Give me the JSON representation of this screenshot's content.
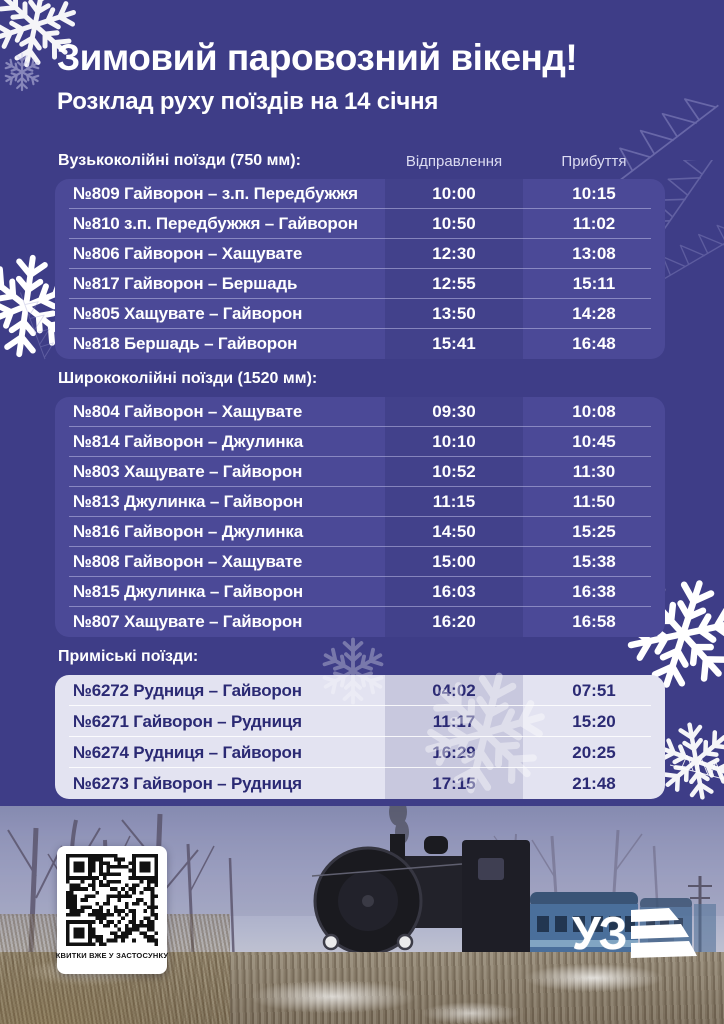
{
  "page": {
    "title": "Зимовий паровозний вікенд!",
    "subtitle": "Розклад руху поїздів на 14 січня"
  },
  "table": {
    "col_departure": "Відправлення",
    "col_arrival": "Прибуття",
    "sections": [
      {
        "label": "Вузькоколійні поїзди (750 мм):",
        "theme": "dark",
        "rows": [
          {
            "train": "№809 Гайворон – з.п. Передбужжя",
            "dep": "10:00",
            "arr": "10:15"
          },
          {
            "train": "№810 з.п. Передбужжя – Гайворон",
            "dep": "10:50",
            "arr": "11:02"
          },
          {
            "train": "№806 Гайворон – Хащувате",
            "dep": "12:30",
            "arr": "13:08"
          },
          {
            "train": "№817 Гайворон – Бершадь",
            "dep": "12:55",
            "arr": "15:11"
          },
          {
            "train": "№805 Хащувате – Гайворон",
            "dep": "13:50",
            "arr": "14:28"
          },
          {
            "train": "№818 Бершадь – Гайворон",
            "dep": "15:41",
            "arr": "16:48"
          }
        ]
      },
      {
        "label": "Ширококолійні поїзди (1520 мм):",
        "theme": "dark",
        "rows": [
          {
            "train": "№804 Гайворон – Хащувате",
            "dep": "09:30",
            "arr": "10:08"
          },
          {
            "train": "№814 Гайворон – Джулинка",
            "dep": "10:10",
            "arr": "10:45"
          },
          {
            "train": "№803 Хащувате – Гайворон",
            "dep": "10:52",
            "arr": "11:30"
          },
          {
            "train": "№813 Джулинка – Гайворон",
            "dep": "11:15",
            "arr": "11:50"
          },
          {
            "train": "№816 Гайворон – Джулинка",
            "dep": "14:50",
            "arr": "15:25"
          },
          {
            "train": "№808 Гайворон – Хащувате",
            "dep": "15:00",
            "arr": "15:38"
          },
          {
            "train": "№815 Джулинка – Гайворон",
            "dep": "16:03",
            "arr": "16:38"
          },
          {
            "train": "№807 Хащувате – Гайворон",
            "dep": "16:20",
            "arr": "16:58"
          }
        ]
      },
      {
        "label": "Приміські поїзди:",
        "theme": "light",
        "rows": [
          {
            "train": "№6272 Рудниця – Гайворон",
            "dep": "04:02",
            "arr": "07:51"
          },
          {
            "train": "№6271 Гайворон – Рудниця",
            "dep": "11:17",
            "arr": "15:20"
          },
          {
            "train": "№6274 Рудниця – Гайворон",
            "dep": "16:29",
            "arr": "20:25"
          },
          {
            "train": "№6273 Гайворон – Рудниця",
            "dep": "17:15",
            "arr": "21:48"
          }
        ]
      }
    ]
  },
  "footer": {
    "qr_caption": "КВИТКИ ВЖЕ У ЗАСТОСУНКУ",
    "logo_text": "УЗ"
  },
  "colors": {
    "background": "#3e3d87",
    "card_dark": "#4b4997",
    "card_light": "#e3e3f1",
    "text_light": "#ffffff",
    "text_dark": "#2b2a74"
  }
}
